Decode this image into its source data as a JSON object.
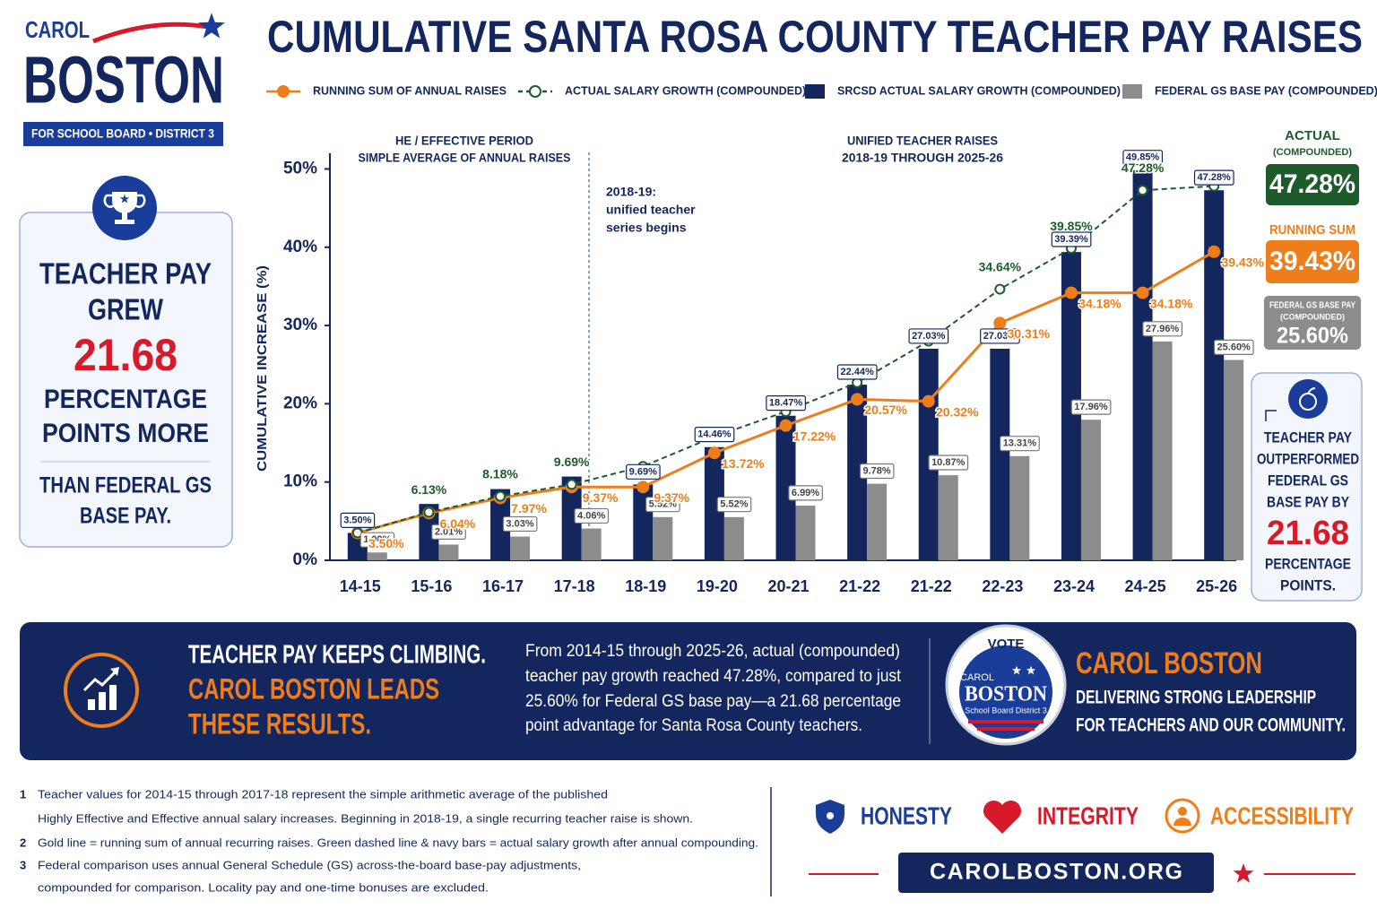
{
  "logo": {
    "first": "CAROL",
    "last": "BOSTON",
    "tagline": "FOR SCHOOL BOARD • DISTRICT 3"
  },
  "title": "CUMULATIVE SANTA ROSA COUNTY TEACHER PAY RAISES",
  "chart_data": {
    "type": "bar",
    "y_label": "CUMULATIVE INCREASE (%)",
    "annotations": [
      {
        "lines": [
          "HE / EFFECTIVE PERIOD",
          "SIMPLE AVERAGE OF ANNUAL RAISES"
        ]
      },
      {
        "lines": [
          "UNIFIED TEACHER RAISES",
          "2018-19 THROUGH 2025-26"
        ]
      },
      {
        "lines": [
          "2018-19:",
          "unified teacher",
          "series begins"
        ]
      }
    ],
    "categories": [
      "14-15",
      "15-16",
      "16-17",
      "17-18",
      "18-19",
      "19-20",
      "20-21",
      "21-22",
      "21-22",
      "22-23",
      "23-24",
      "24-25",
      "25-26"
    ],
    "series": [
      {
        "name": "RUNNING SUM OF ANNUAL RAISES",
        "type": "line",
        "line_style": "solid",
        "color": "#ee7d1a",
        "values": [
          3.5,
          6.04,
          7.97,
          9.37,
          9.37,
          13.72,
          17.22,
          20.57,
          20.32,
          30.31,
          34.18,
          34.18,
          39.43
        ],
        "value_labels": [
          "3.50%",
          "6.04%",
          "7.97%",
          "9.37%",
          "9.37%",
          "13.72%",
          "17.22%",
          "20.57%",
          "20.32%",
          "30.31%",
          "34.18%",
          "34.18%",
          "39.43%"
        ]
      },
      {
        "name": "ACTUAL SALARY GROWTH (COMPOUNDED)",
        "type": "line",
        "line_style": "dashed",
        "color": "#1d5b2a",
        "values": [
          3.5,
          6.13,
          8.18,
          9.69,
          12.0,
          15.8,
          19.0,
          22.7,
          28.0,
          34.64,
          39.85,
          47.28,
          47.8
        ],
        "value_labels": [
          null,
          "6.13%",
          "8.18%",
          "9.69%",
          null,
          null,
          null,
          null,
          null,
          "34.64%",
          "39.85%",
          "47.28%",
          null
        ]
      },
      {
        "name": "SRCSD ACTUAL SALARY GROWTH (COMPOUNDED)",
        "type": "bar",
        "color": "#13275e",
        "values": [
          3.5,
          7.2,
          9.1,
          10.7,
          9.69,
          14.46,
          18.47,
          22.44,
          27.03,
          27.03,
          39.39,
          49.85,
          47.28
        ],
        "value_labels": [
          "3.50%",
          null,
          null,
          null,
          "9.69%",
          "14.46%",
          "18.47%",
          "22.44%",
          "27.03%",
          "27.03%",
          "39.39%",
          "49.85%",
          "47.28%"
        ]
      },
      {
        "name": "FEDERAL GS BASE PAY (COMPOUNDED)",
        "type": "bar",
        "color": "#8c8c8c",
        "values": [
          1.0,
          2.01,
          3.03,
          4.06,
          5.52,
          5.52,
          6.99,
          9.78,
          10.87,
          13.31,
          17.96,
          27.96,
          25.6
        ],
        "value_labels": [
          "1.00%",
          "2.01%",
          "3.03%",
          "4.06%",
          "5.52%",
          "5.52%",
          "6.99%",
          "9.78%",
          "10.87%",
          "13.31%",
          "17.96%",
          "27.96%",
          "25.60%"
        ]
      }
    ],
    "ylim": [
      0,
      52
    ],
    "yticks": [
      {
        "value": 0,
        "label": "0%"
      },
      {
        "value": 10,
        "label": "10%"
      },
      {
        "value": 20,
        "label": "20%"
      },
      {
        "value": 30,
        "label": "30%"
      },
      {
        "value": 40,
        "label": "40%"
      },
      {
        "value": 50,
        "label": "50%"
      }
    ],
    "grid": false,
    "legend": "top"
  },
  "summary_card": {
    "lines": [
      "TEACHER PAY",
      "GREW",
      "PERCENTAGE",
      "POINTS MORE",
      "THAN FEDERAL GS",
      "BASE PAY."
    ],
    "figure": "21.68"
  },
  "stats": [
    {
      "title": "ACTUAL",
      "subtitle": "(COMPOUNDED)",
      "value": "47.28%"
    },
    {
      "title": "RUNNING SUM",
      "value": "39.43%"
    },
    {
      "title": "FEDERAL GS BASE PAY",
      "subtitle": "(COMPOUNDED)",
      "value": "25.60%"
    }
  ],
  "outperform_card": {
    "lines": [
      "TEACHER PAY",
      "OUTPERFORMED",
      "FEDERAL GS",
      "BASE PAY BY",
      "PERCENTAGE",
      "POINTS."
    ],
    "figure": "21.68"
  },
  "banner": {
    "headline": "TEACHER PAY KEEPS CLIMBING.",
    "highlight": [
      "CAROL BOSTON LEADS",
      "THESE RESULTS."
    ],
    "paragraph": [
      "From 2014-15 through 2025-26, actual (compounded)",
      "teacher pay growth reached 47.28%, compared to just",
      "25.60% for Federal GS base pay—a 21.68 percentage",
      "point advantage for Santa Rosa County teachers."
    ],
    "badge": {
      "vote": "VOTE",
      "first": "CAROL",
      "last": "BOSTON",
      "sub": "School Board District 3"
    },
    "name": "CAROL BOSTON",
    "slogan": [
      "DELIVERING STRONG LEADERSHIP",
      "FOR TEACHERS AND OUR COMMUNITY."
    ]
  },
  "footnotes": [
    {
      "number": "1",
      "lines": [
        "Teacher values for 2014-15 through 2017-18 represent the simple arithmetic average of the published",
        "Highly Effective and Effective annual salary increases. Beginning in 2018-19, a single recurring teacher raise is shown."
      ]
    },
    {
      "number": "2",
      "lines": [
        "Gold line = running sum of annual recurring raises. Green dashed line & navy bars = actual salary growth after annual compounding."
      ]
    },
    {
      "number": "3",
      "lines": [
        "Federal comparison uses annual General Schedule (GS) across-the-board base-pay adjustments,",
        "compounded for comparison. Locality pay and one-time bonuses are excluded."
      ]
    }
  ],
  "values": [
    "HONESTY",
    "INTEGRITY",
    "ACCESSIBILITY"
  ],
  "website": "CAROLBOSTON.ORG"
}
